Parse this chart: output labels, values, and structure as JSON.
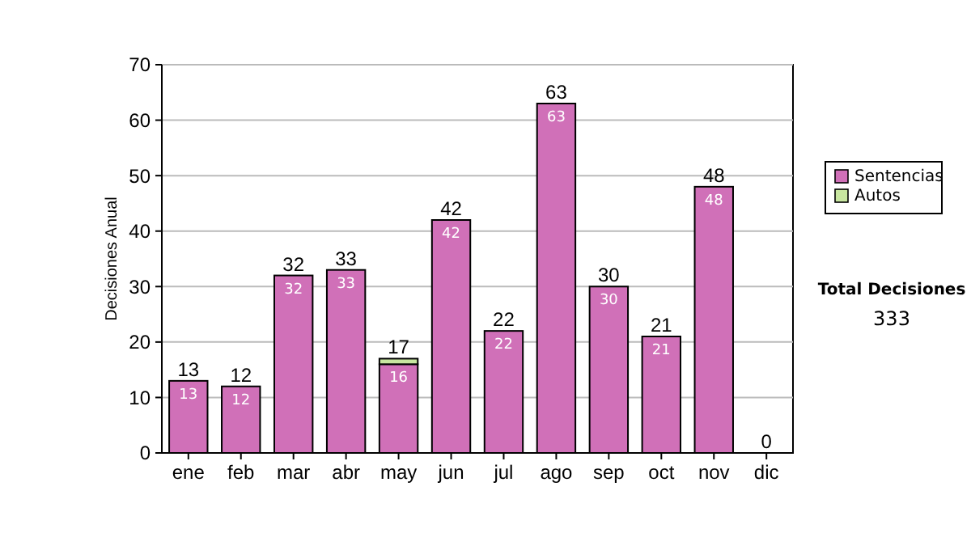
{
  "chart_data": {
    "type": "bar",
    "stacked": true,
    "ylabel": "Decisiones Anual",
    "categories": [
      "ene",
      "feb",
      "mar",
      "abr",
      "may",
      "jun",
      "jul",
      "ago",
      "sep",
      "oct",
      "nov",
      "dic"
    ],
    "series": [
      {
        "name": "Sentencias",
        "color": "#d070b8",
        "values": [
          13,
          12,
          32,
          33,
          16,
          42,
          22,
          63,
          30,
          21,
          48,
          0
        ],
        "value_labels": [
          "13",
          "12",
          "32",
          "33",
          "16",
          "42",
          "22",
          "63",
          "30",
          "21",
          "48",
          null
        ]
      },
      {
        "name": "Autos",
        "color": "#c8e6a0",
        "values": [
          0,
          0,
          0,
          0,
          1,
          0,
          0,
          0,
          0,
          0,
          0,
          0
        ]
      }
    ],
    "totals": [
      "13",
      "12",
      "32",
      "33",
      "17",
      "42",
      "22",
      "63",
      "30",
      "21",
      "48",
      "0"
    ],
    "ylim": [
      0,
      70
    ],
    "yticks": [
      0,
      10,
      20,
      30,
      40,
      50,
      60,
      70
    ],
    "grid": "y",
    "legend": "right",
    "annotations": [
      "Total Decisiones",
      "333"
    ]
  }
}
